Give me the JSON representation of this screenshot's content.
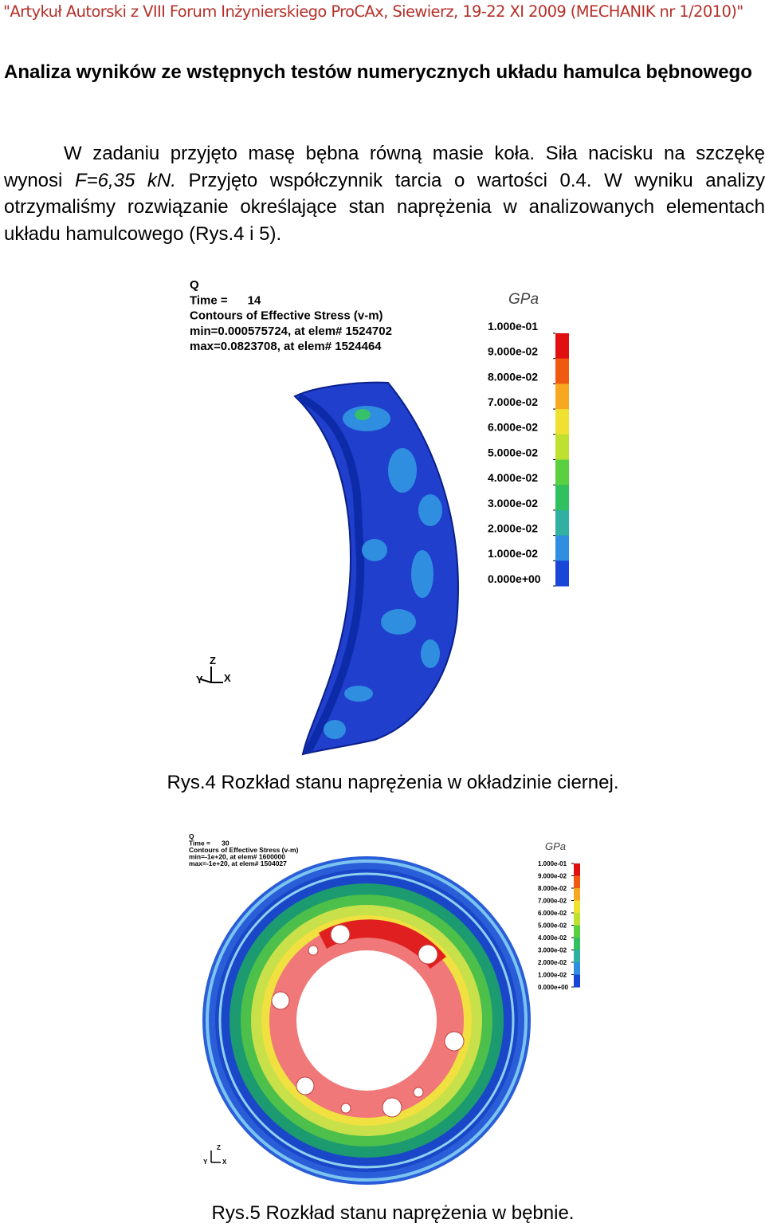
{
  "header": "\"Artykuł Autorski z VIII Forum Inżynierskiego ProCAx, Siewierz, 19-22 XI 2009 (MECHANIK nr 1/2010)\"",
  "heading": "Analiza wyników ze wstępnych testów numerycznych układu hamulca bębnowego",
  "paragraph": {
    "part1": "W zadaniu przyjęto masę bębna równą masie koła. Siła nacisku na szczękę wynosi ",
    "formula": "F=6,35 kN.",
    "part2": " Przyjęto współczynnik tarcia o wartości 0.4. W wyniku analizy otrzymaliśmy rozwiązanie określające stan naprężenia w analizowanych elementach układu hamulcowego (Rys.4 i 5)."
  },
  "figures": [
    {
      "info": [
        "Q",
        "Time =      14",
        "Contours of Effective Stress (v-m)",
        "min=0.000575724, at elem# 1524702",
        "max=0.0823708, at elem# 1524464"
      ],
      "unit": "GPa",
      "legend": [
        "1.000e-01",
        "9.000e-02",
        "8.000e-02",
        "7.000e-02",
        "6.000e-02",
        "5.000e-02",
        "4.000e-02",
        "3.000e-02",
        "2.000e-02",
        "1.000e-02",
        "0.000e+00"
      ],
      "axes": [
        "Z",
        "Y",
        "X"
      ],
      "caption": "Rys.4  Rozkład stanu naprężenia w okładzinie ciernej."
    },
    {
      "info": [
        "Q",
        "Time =      30",
        "Contours of Effective Stress (v-m)",
        "min=-1e+20, at elem# 1600000",
        "max=-1e+20, at elem# 1504027"
      ],
      "unit": "GPa",
      "legend": [
        "1.000e-01",
        "9.000e-02",
        "8.000e-02",
        "7.000e-02",
        "6.000e-02",
        "5.000e-02",
        "4.000e-02",
        "3.000e-02",
        "2.000e-02",
        "1.000e-02",
        "0.000e+00"
      ],
      "axes": [
        "Z",
        "Y",
        "X"
      ],
      "caption": "Rys.5 Rozkład stanu naprężenia w bębnie."
    }
  ]
}
